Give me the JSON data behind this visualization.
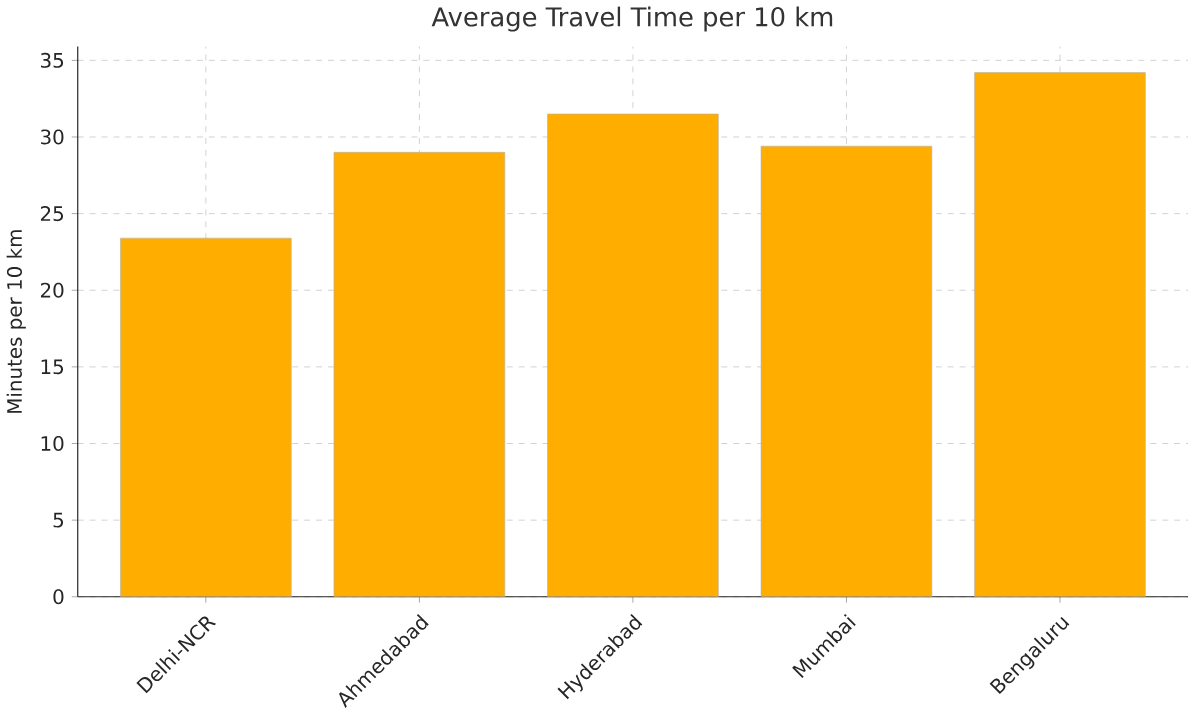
{
  "chart_data": {
    "type": "bar",
    "title": "Average Travel Time per 10 km",
    "ylabel": "Minutes per 10 km",
    "categories": [
      "Delhi-NCR",
      "Ahmedabad",
      "Hyderabad",
      "Mumbai",
      "Bengaluru"
    ],
    "values": [
      23.4,
      29.0,
      31.5,
      29.4,
      34.2
    ],
    "color": "#ffae00",
    "ylim": [
      0,
      35.9
    ],
    "yticks": [
      0,
      5,
      10,
      15,
      20,
      25,
      30,
      35
    ],
    "grid": true
  }
}
